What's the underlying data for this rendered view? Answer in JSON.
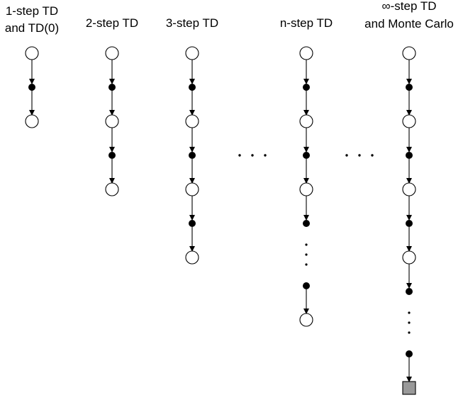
{
  "diagram": {
    "columns": [
      {
        "id": "1-step",
        "label_lines": [
          "1-step TD",
          "and TD(0)"
        ],
        "sequence": [
          "state",
          "action",
          "state"
        ]
      },
      {
        "id": "2-step",
        "label_lines": [
          "2-step TD"
        ],
        "sequence": [
          "state",
          "action",
          "state",
          "action",
          "state"
        ]
      },
      {
        "id": "3-step",
        "label_lines": [
          "3-step TD"
        ],
        "sequence": [
          "state",
          "action",
          "state",
          "action",
          "state",
          "action",
          "state"
        ]
      },
      {
        "id": "n-step",
        "label_lines": [
          "n-step TD"
        ],
        "sequence": [
          "state",
          "action",
          "state",
          "action",
          "state",
          "action",
          "vdots",
          "action",
          "state"
        ]
      },
      {
        "id": "inf-step",
        "label_lines": [
          "∞-step TD",
          "and Monte Carlo"
        ],
        "sequence": [
          "state",
          "action",
          "state",
          "action",
          "state",
          "action",
          "state",
          "action",
          "vdots",
          "action",
          "terminal"
        ]
      }
    ],
    "ellipses": [
      "h-dots-1",
      "h-dots-2"
    ]
  }
}
